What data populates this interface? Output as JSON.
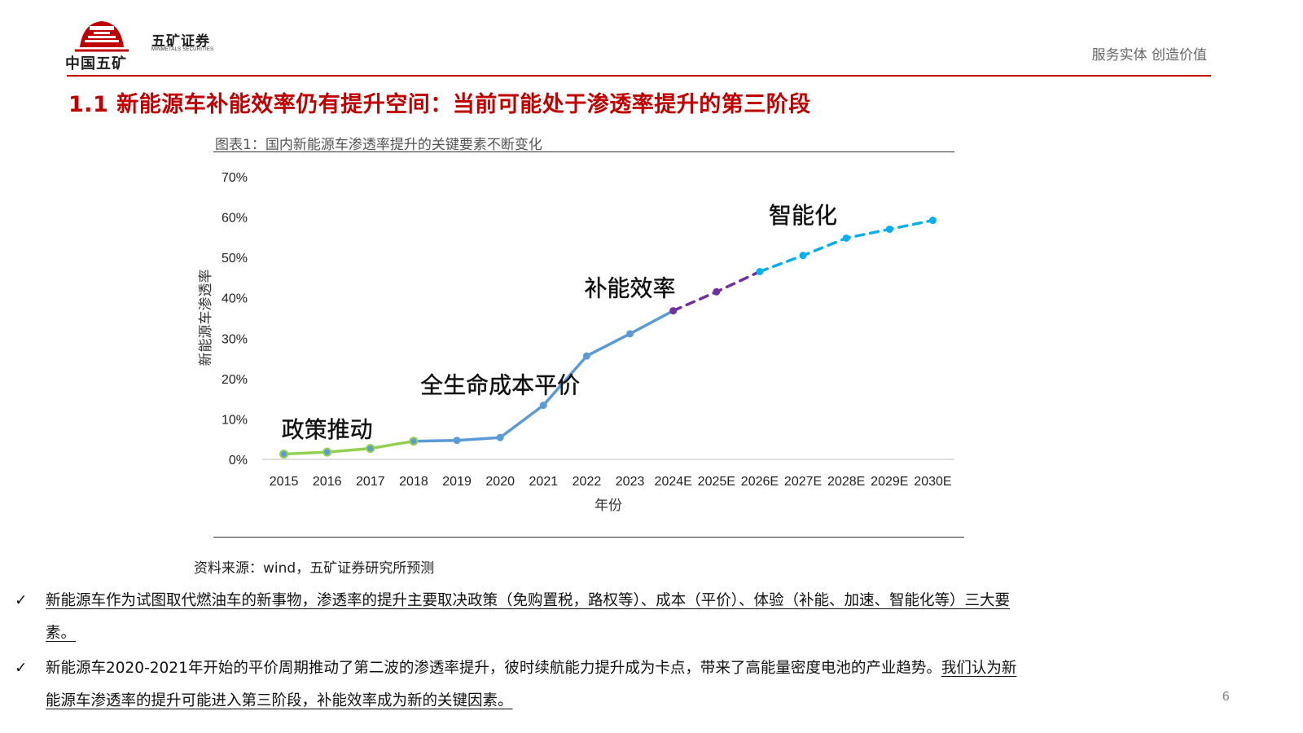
{
  "header": {
    "logo_text": "中国五矿",
    "securities_name": "五矿证券",
    "securities_en": "MINMETALS SECURITIES",
    "slogan": "服务实体  创造价值"
  },
  "page_title": "1.1 新能源车补能效率仍有提升空间：当前可能处于渗透率提升的第三阶段",
  "chart_caption": "图表1：国内新能源车渗透率提升的关键要素不断变化",
  "source": "资料来源：wind，五矿证券研究所预测",
  "bullets": [
    {
      "check": "✓",
      "line1": "新能源车作为试图取代燃油车的新事物，渗透率的提升主要取决政策（免购置税，路权等）、成本（平价）、体验（补能、加速、智能化等）三大要",
      "line2": "素。"
    },
    {
      "check": "✓",
      "line1_plain": "新能源车2020-2021年开始的平价周期推动了第二波的渗透率提升，彼时续航能力提升成为卡点，带来了高能量密度电池的产业趋势。",
      "line1_underlined": "我们认为新",
      "line2": "能源车渗透率的提升可能进入第三阶段，补能效率成为新的关键因素。"
    }
  ],
  "page_number": "6",
  "colors": {
    "accent_red": "#c00000",
    "policy_green": "#92d050",
    "cost_blue": "#5b9bd5",
    "efficiency_purple": "#7030a0",
    "smart_cyan": "#00b0f0"
  },
  "chart_data": {
    "type": "line",
    "categories": [
      "2015",
      "2016",
      "2017",
      "2018",
      "2019",
      "2020",
      "2021",
      "2022",
      "2023",
      "2024E",
      "2025E",
      "2026E",
      "2027E",
      "2028E",
      "2029E",
      "2030E"
    ],
    "values": [
      1.3,
      1.8,
      2.7,
      4.5,
      4.7,
      5.4,
      13.4,
      25.6,
      31.1,
      36.8,
      41.5,
      46.5,
      50.5,
      54.8,
      57.0,
      59.2
    ],
    "ylabel": "新能源车渗透率",
    "xlabel": "年份",
    "ylim": [
      0,
      70
    ],
    "yticks": [
      "0%",
      "10%",
      "20%",
      "30%",
      "40%",
      "50%",
      "60%",
      "70%"
    ],
    "grid": false,
    "segments": [
      {
        "from": "2015",
        "to": "2018",
        "style": "solid",
        "color": "#92d050"
      },
      {
        "from": "2018",
        "to": "2024E",
        "style": "solid",
        "color": "#5b9bd5"
      },
      {
        "from": "2024E",
        "to": "2026E",
        "style": "dashed",
        "color": "#7030a0"
      },
      {
        "from": "2026E",
        "to": "2030E",
        "style": "dashed",
        "color": "#00b0f0"
      }
    ],
    "annotations": [
      {
        "text": "政策推动",
        "category": "2016",
        "value": 7.5
      },
      {
        "text": "全生命成本平价",
        "category": "2020",
        "value": 18.5
      },
      {
        "text": "补能效率",
        "category": "2023",
        "value": 42.5
      },
      {
        "text": "智能化",
        "category": "2027E",
        "value": 60.5
      }
    ]
  }
}
